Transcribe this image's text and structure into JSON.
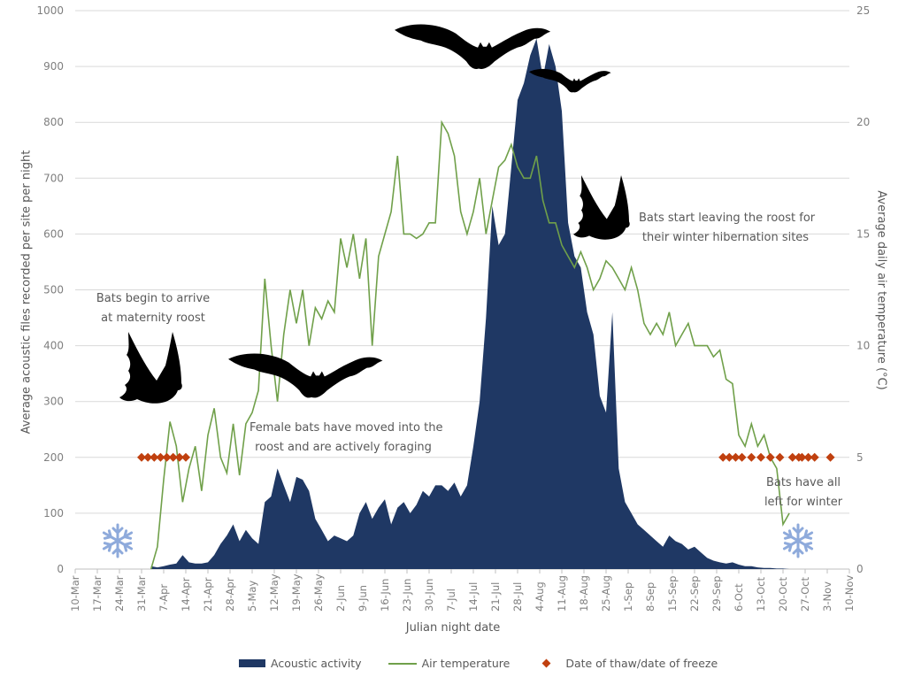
{
  "chart_data": {
    "type": "area+line+scatter",
    "title": "",
    "xlabel": "Julian night date",
    "ylabel_left": "Average acoustic files recorded per site per night",
    "ylabel_right": "Average daily air temperature (°C)",
    "ylim_left": [
      0,
      1000
    ],
    "yticks_left": [
      0,
      100,
      200,
      300,
      400,
      500,
      600,
      700,
      800,
      900,
      1000
    ],
    "ylim_right": [
      0,
      25
    ],
    "yticks_right": [
      0,
      5,
      10,
      15,
      20,
      25
    ],
    "grid": true,
    "legend_position": "bottom",
    "x_tick_labels": [
      "10-Mar",
      "17-Mar",
      "24-Mar",
      "31-Mar",
      "7-Apr",
      "14-Apr",
      "21-Apr",
      "28-Apr",
      "5-May",
      "12-May",
      "19-May",
      "26-May",
      "2-Jun",
      "9-Jun",
      "16-Jun",
      "23-Jun",
      "30-Jun",
      "7-Jul",
      "14-Jul",
      "21-Jul",
      "28-Jul",
      "4-Aug",
      "11-Aug",
      "18-Aug",
      "25-Aug",
      "1-Sep",
      "8-Sep",
      "15-Sep",
      "22-Sep",
      "29-Sep",
      "6-Oct",
      "13-Oct",
      "20-Oct",
      "27-Oct",
      "3-Nov",
      "10-Nov"
    ],
    "x_unit_note": "x values are days after 10-Mar",
    "series": [
      {
        "name": "Acoustic activity",
        "type": "area",
        "axis": "left",
        "color": "#1f3864",
        "x": [
          24,
          26,
          28,
          30,
          32,
          34,
          36,
          38,
          40,
          42,
          44,
          46,
          48,
          50,
          52,
          54,
          56,
          58,
          60,
          62,
          64,
          66,
          68,
          70,
          72,
          74,
          76,
          78,
          80,
          82,
          84,
          86,
          88,
          90,
          92,
          94,
          96,
          98,
          100,
          102,
          104,
          106,
          108,
          110,
          112,
          114,
          116,
          118,
          120,
          122,
          124,
          126,
          128,
          130,
          132,
          134,
          136,
          138,
          140,
          142,
          144,
          146,
          148,
          150,
          152,
          154,
          156,
          158,
          160,
          162,
          164,
          166,
          168,
          170,
          172,
          174,
          176,
          178,
          180,
          182,
          184,
          186,
          188,
          190,
          192,
          194,
          196,
          198,
          200,
          202,
          204,
          206,
          208,
          210,
          212,
          214,
          216,
          218,
          220,
          222,
          224,
          226,
          228,
          230,
          232,
          234,
          236,
          238
        ],
        "values": [
          5,
          3,
          5,
          8,
          10,
          25,
          12,
          10,
          10,
          12,
          25,
          45,
          60,
          80,
          50,
          70,
          55,
          45,
          120,
          130,
          180,
          150,
          120,
          165,
          160,
          140,
          90,
          70,
          50,
          60,
          55,
          50,
          60,
          100,
          120,
          90,
          110,
          125,
          80,
          110,
          120,
          100,
          115,
          140,
          130,
          150,
          150,
          140,
          155,
          130,
          150,
          220,
          300,
          450,
          650,
          580,
          600,
          720,
          840,
          870,
          920,
          950,
          880,
          940,
          900,
          820,
          620,
          560,
          540,
          460,
          420,
          310,
          280,
          460,
          180,
          120,
          100,
          80,
          70,
          60,
          50,
          40,
          60,
          50,
          45,
          35,
          40,
          30,
          20,
          15,
          12,
          10,
          12,
          8,
          5,
          5,
          3,
          2,
          2,
          1,
          1,
          0,
          0,
          0,
          0,
          0,
          0,
          0
        ]
      },
      {
        "name": "Air temperature",
        "type": "line",
        "axis": "right",
        "color": "#70a04a",
        "x": [
          24,
          26,
          28,
          30,
          32,
          34,
          36,
          38,
          40,
          42,
          44,
          46,
          48,
          50,
          52,
          54,
          56,
          58,
          60,
          62,
          64,
          66,
          68,
          70,
          72,
          74,
          76,
          78,
          80,
          82,
          84,
          86,
          88,
          90,
          92,
          94,
          96,
          98,
          100,
          102,
          104,
          106,
          108,
          110,
          112,
          114,
          116,
          118,
          120,
          122,
          124,
          126,
          128,
          130,
          132,
          134,
          136,
          138,
          140,
          142,
          144,
          146,
          148,
          150,
          152,
          154,
          156,
          158,
          160,
          162,
          164,
          166,
          168,
          170,
          172,
          174,
          176,
          178,
          180,
          182,
          184,
          186,
          188,
          190,
          192,
          194,
          196,
          198,
          200,
          202,
          204,
          206,
          208,
          210,
          212,
          214,
          216,
          218,
          220,
          222,
          224,
          226,
          228,
          230,
          232,
          234,
          236,
          238
        ],
        "values": [
          0,
          1,
          4,
          6.6,
          5.5,
          3,
          4.5,
          5.5,
          3.5,
          6,
          7.2,
          5,
          4.3,
          6.5,
          4.2,
          6.5,
          7,
          8,
          13,
          10,
          7.5,
          10.5,
          12.5,
          11,
          12.5,
          10,
          11.7,
          11.2,
          12,
          11.5,
          14.8,
          13.5,
          15,
          13,
          14.8,
          10,
          14,
          15,
          16,
          18.5,
          15,
          15,
          14.8,
          15,
          15.5,
          15.5,
          20,
          19.5,
          18.5,
          16,
          15,
          16,
          17.5,
          15,
          16.5,
          18,
          18.3,
          19,
          18,
          17.5,
          17.5,
          18.5,
          16.5,
          15.5,
          15.5,
          14.5,
          14,
          13.5,
          14.2,
          13.5,
          12.5,
          13,
          13.8,
          13.5,
          13,
          12.5,
          13.5,
          12.5,
          11,
          10.5,
          11,
          10.5,
          11.5,
          10,
          10.5,
          11,
          10,
          10,
          10,
          9.5,
          9.8,
          8.5,
          8.3,
          6,
          5.5,
          6.5,
          5.5,
          6,
          5,
          4.5,
          2,
          2.5,
          3.2,
          3.5,
          0,
          0,
          0,
          0
        ]
      },
      {
        "name": "Date of thaw/date of freeze",
        "type": "scatter",
        "axis": "left",
        "color": "#c0400f",
        "x": [
          21,
          23,
          25,
          27,
          29,
          31,
          33,
          35,
          205,
          207,
          209,
          211,
          214,
          217,
          220,
          223,
          227,
          229,
          230,
          232,
          234,
          239
        ],
        "values": [
          200,
          200,
          200,
          200,
          200,
          200,
          200,
          200,
          200,
          200,
          200,
          200,
          200,
          200,
          200,
          200,
          200,
          200,
          200,
          200,
          200,
          200
        ]
      }
    ],
    "annotations": [
      {
        "text": "Bats begin to arrive\nat maternity roost"
      },
      {
        "text": "Female bats have moved into the\nroost and are actively foraging"
      },
      {
        "text": "Bats start leaving the roost for\ntheir winter hibernation sites"
      },
      {
        "text": "Bats have all\nleft for winter"
      }
    ],
    "decorations": [
      "bat-silhouette x6",
      "snowflake x2"
    ]
  },
  "labels": {
    "xlabel": "Julian night date",
    "ylabel_left": "Average acoustic files recorded per site per night",
    "ylabel_right": "Average daily air temperature (°C)",
    "ann1_l1": "Bats begin to arrive",
    "ann1_l2": "at maternity roost",
    "ann2_l1": "Female bats have moved into the",
    "ann2_l2": "roost and are actively foraging",
    "ann3_l1": "Bats start leaving the roost for",
    "ann3_l2": "their winter hibernation sites",
    "ann4_l1": "Bats have all",
    "ann4_l2": "left for winter"
  },
  "legend": [
    {
      "label": "Acoustic activity"
    },
    {
      "label": "Air temperature"
    },
    {
      "label": "Date of thaw/date of freeze"
    }
  ],
  "colors": {
    "area": "#1f3864",
    "line": "#70a04a",
    "marker": "#c0400f",
    "grid": "#d9d9d9",
    "snowflake": "#8eaadb",
    "bat": "#000000"
  }
}
